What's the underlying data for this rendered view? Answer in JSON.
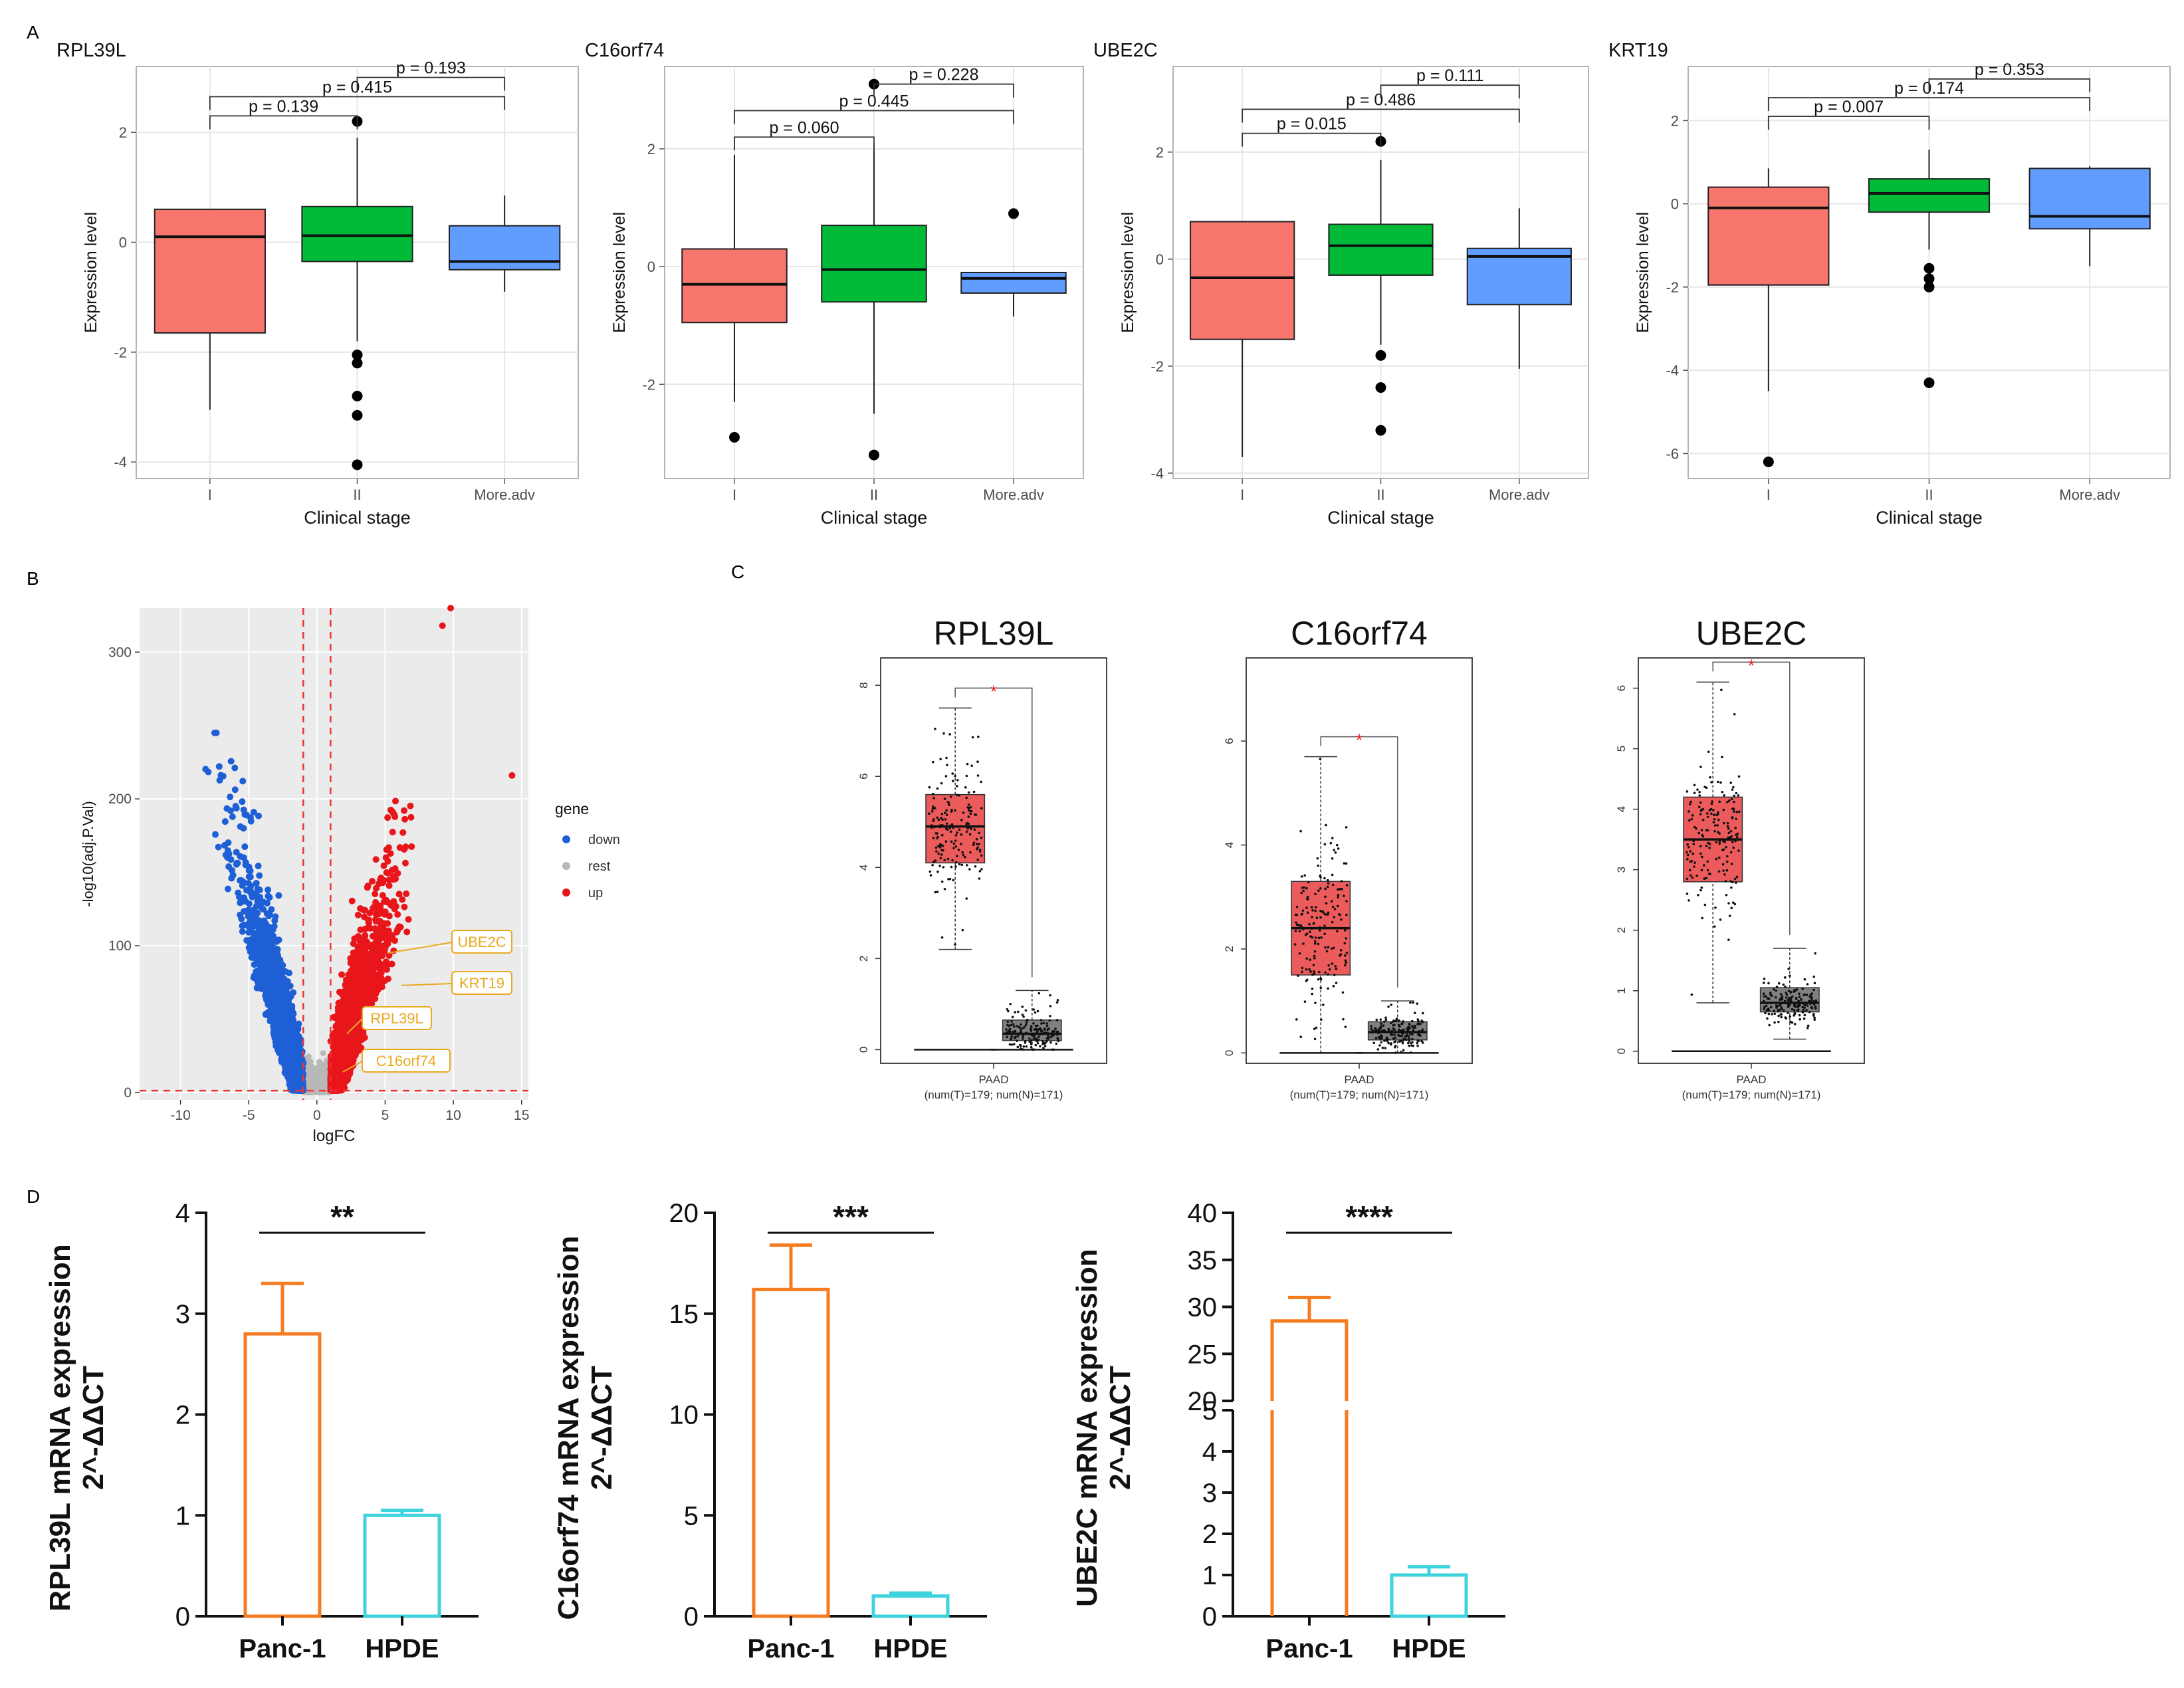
{
  "panel_labels": {
    "a": "A",
    "b": "B",
    "c": "C",
    "d": "D"
  },
  "colors": {
    "stage1": "#f8766d",
    "stage2": "#00ba38",
    "stage3": "#619cff",
    "down": "#1f5fd6",
    "rest": "#b8b8b8",
    "up": "#e8161b",
    "tumor": "#ec5b5b",
    "normal": "#808080",
    "panc": "#f47b20",
    "hpde": "#3fd3dd",
    "label_gold": "#e9a920"
  },
  "chart_data": [
    {
      "id": "A1",
      "type": "box",
      "title": "RPL39L",
      "xlabel": "Clinical stage",
      "ylabel": "Expression level",
      "categories": [
        "I",
        "II",
        "More.adv"
      ],
      "ylim": [
        -4.3,
        3.2
      ],
      "yticks": [
        -4,
        -2,
        0,
        2
      ],
      "boxes": [
        {
          "low": -3.05,
          "q1": -1.65,
          "median": 0.1,
          "q3": 0.6,
          "high": 0.6,
          "outliers": []
        },
        {
          "low": -1.8,
          "q1": -0.35,
          "median": 0.12,
          "q3": 0.65,
          "high": 1.9,
          "outliers": [
            2.2,
            -2.05,
            -2.2,
            -2.8,
            -3.15,
            -4.05
          ]
        },
        {
          "low": -0.9,
          "q1": -0.5,
          "median": -0.35,
          "q3": 0.3,
          "high": 0.85,
          "outliers": []
        }
      ],
      "brackets": [
        {
          "from": 0,
          "to": 1,
          "y": 2.3,
          "label": "p = 0.139"
        },
        {
          "from": 0,
          "to": 2,
          "y": 2.65,
          "label": "p = 0.415"
        },
        {
          "from": 1,
          "to": 2,
          "y": 3.0,
          "label": "p = 0.193"
        }
      ]
    },
    {
      "id": "A2",
      "type": "box",
      "title": "C16orf74",
      "xlabel": "Clinical stage",
      "ylabel": "Expression level",
      "categories": [
        "I",
        "II",
        "More.adv"
      ],
      "ylim": [
        -3.6,
        3.4
      ],
      "yticks": [
        -2,
        0,
        2
      ],
      "boxes": [
        {
          "low": -2.3,
          "q1": -0.95,
          "median": -0.3,
          "q3": 0.3,
          "high": 1.9,
          "outliers": [
            -2.9
          ]
        },
        {
          "low": -2.5,
          "q1": -0.6,
          "median": -0.05,
          "q3": 0.7,
          "high": 2.1,
          "outliers": [
            3.1,
            -3.2
          ]
        },
        {
          "low": -0.85,
          "q1": -0.45,
          "median": -0.2,
          "q3": -0.1,
          "high": -0.1,
          "outliers": [
            0.9
          ]
        }
      ],
      "brackets": [
        {
          "from": 0,
          "to": 1,
          "y": 2.2,
          "label": "p = 0.060"
        },
        {
          "from": 0,
          "to": 2,
          "y": 2.65,
          "label": "p = 0.445"
        },
        {
          "from": 1,
          "to": 2,
          "y": 3.1,
          "label": "p = 0.228"
        }
      ]
    },
    {
      "id": "A3",
      "type": "box",
      "title": "UBE2C",
      "xlabel": "Clinical stage",
      "ylabel": "Expression level",
      "categories": [
        "I",
        "II",
        "More.adv"
      ],
      "ylim": [
        -4.1,
        3.6
      ],
      "yticks": [
        -4,
        -2,
        0,
        2
      ],
      "boxes": [
        {
          "low": -3.7,
          "q1": -1.5,
          "median": -0.35,
          "q3": 0.7,
          "high": 0.7,
          "outliers": []
        },
        {
          "low": -1.6,
          "q1": -0.3,
          "median": 0.25,
          "q3": 0.65,
          "high": 1.85,
          "outliers": [
            2.2,
            -1.8,
            -2.4,
            -3.2
          ]
        },
        {
          "low": -2.05,
          "q1": -0.85,
          "median": 0.05,
          "q3": 0.2,
          "high": 0.95,
          "outliers": []
        }
      ],
      "brackets": [
        {
          "from": 0,
          "to": 1,
          "y": 2.35,
          "label": "p = 0.015"
        },
        {
          "from": 0,
          "to": 2,
          "y": 2.8,
          "label": "p = 0.486"
        },
        {
          "from": 1,
          "to": 2,
          "y": 3.25,
          "label": "p = 0.111"
        }
      ]
    },
    {
      "id": "A4",
      "type": "box",
      "title": "KRT19",
      "xlabel": "Clinical stage",
      "ylabel": "Expression level",
      "categories": [
        "I",
        "II",
        "More.adv"
      ],
      "ylim": [
        -6.6,
        3.3
      ],
      "yticks": [
        -6,
        -4,
        -2,
        0,
        2
      ],
      "boxes": [
        {
          "low": -4.5,
          "q1": -1.95,
          "median": -0.1,
          "q3": 0.4,
          "high": 0.85,
          "outliers": [
            -6.2
          ]
        },
        {
          "low": -1.1,
          "q1": -0.2,
          "median": 0.25,
          "q3": 0.6,
          "high": 1.3,
          "outliers": [
            -1.55,
            -1.8,
            -2.0,
            -4.3
          ]
        },
        {
          "low": -1.5,
          "q1": -0.6,
          "median": -0.3,
          "q3": 0.85,
          "high": 0.9,
          "outliers": []
        }
      ],
      "brackets": [
        {
          "from": 0,
          "to": 1,
          "y": 2.1,
          "label": "p = 0.007"
        },
        {
          "from": 0,
          "to": 2,
          "y": 2.55,
          "label": "p = 0.174"
        },
        {
          "from": 1,
          "to": 2,
          "y": 3.0,
          "label": "p = 0.353"
        }
      ]
    },
    {
      "id": "B",
      "type": "scatter",
      "xlabel": "logFC",
      "ylabel": "-log10(adj.P.Val)",
      "xlim": [
        -13,
        15.5
      ],
      "ylim": [
        -5,
        330
      ],
      "xticks": [
        -10,
        -5,
        0,
        5,
        10,
        15
      ],
      "yticks": [
        0,
        100,
        200,
        300
      ],
      "thresholds": {
        "x": [
          -1,
          1
        ],
        "y": 1.3
      },
      "legend": {
        "title": "gene",
        "items": [
          "down",
          "rest",
          "up"
        ]
      },
      "labeled_genes": [
        {
          "name": "UBE2C",
          "x": 5.2,
          "y": 95
        },
        {
          "name": "KRT19",
          "x": 6.2,
          "y": 73
        },
        {
          "name": "RPL39L",
          "x": 2.2,
          "y": 40
        },
        {
          "name": "C16orf74",
          "x": 1.9,
          "y": 14
        }
      ],
      "point_counts": {
        "down": 2600,
        "rest": 450,
        "up": 2800
      }
    },
    {
      "id": "C1",
      "type": "box",
      "title": "RPL39L",
      "dataset": "PAAD",
      "footnote": "(num(T)=179; num(N)=171)",
      "ylim": [
        -0.3,
        8.6
      ],
      "yticks": [
        0,
        2,
        4,
        6,
        8
      ],
      "significance": "*",
      "boxes": [
        {
          "group": "T",
          "low": 2.2,
          "q1": 4.1,
          "median": 4.9,
          "q3": 5.6,
          "high": 7.5,
          "n": 179
        },
        {
          "group": "N",
          "low": 0.0,
          "q1": 0.2,
          "median": 0.35,
          "q3": 0.65,
          "high": 1.3,
          "n": 171
        }
      ]
    },
    {
      "id": "C2",
      "type": "box",
      "title": "C16orf74",
      "dataset": "PAAD",
      "footnote": "(num(T)=179; num(N)=171)",
      "ylim": [
        -0.2,
        7.6
      ],
      "yticks": [
        0,
        2,
        4,
        6
      ],
      "significance": "*",
      "boxes": [
        {
          "group": "T",
          "low": 0.0,
          "q1": 1.5,
          "median": 2.4,
          "q3": 3.3,
          "high": 5.7,
          "n": 179
        },
        {
          "group": "N",
          "low": 0.0,
          "q1": 0.25,
          "median": 0.4,
          "q3": 0.6,
          "high": 1.0,
          "n": 171
        }
      ]
    },
    {
      "id": "C3",
      "type": "box",
      "title": "UBE2C",
      "dataset": "PAAD",
      "footnote": "(num(T)=179; num(N)=171)",
      "ylim": [
        -0.2,
        6.5
      ],
      "yticks": [
        0,
        1,
        2,
        3,
        4,
        5,
        6
      ],
      "significance": "*",
      "boxes": [
        {
          "group": "T",
          "low": 0.8,
          "q1": 2.8,
          "median": 3.5,
          "q3": 4.2,
          "high": 6.1,
          "n": 179
        },
        {
          "group": "N",
          "low": 0.2,
          "q1": 0.65,
          "median": 0.8,
          "q3": 1.05,
          "high": 1.7,
          "n": 171
        }
      ]
    },
    {
      "id": "D1",
      "type": "bar",
      "ylabel_lines": [
        "RPL39L mRNA expression",
        "2^-ΔΔCT"
      ],
      "categories": [
        "Panc-1",
        "HPDE"
      ],
      "values": [
        2.8,
        1.0
      ],
      "errors": [
        0.5,
        0.05
      ],
      "ylim": [
        0,
        4
      ],
      "yticks": [
        0,
        1,
        2,
        3,
        4
      ],
      "significance": "**"
    },
    {
      "id": "D2",
      "type": "bar",
      "ylabel_lines": [
        "C16orf74 mRNA expression",
        "2^-ΔΔCT"
      ],
      "categories": [
        "Panc-1",
        "HPDE"
      ],
      "values": [
        16.2,
        1.0
      ],
      "errors": [
        2.2,
        0.15
      ],
      "ylim": [
        0,
        20
      ],
      "yticks": [
        0,
        5,
        10,
        15,
        20
      ],
      "significance": "***"
    },
    {
      "id": "D3",
      "type": "bar",
      "ylabel_lines": [
        "UBE2C mRNA expression",
        "2^-ΔΔCT"
      ],
      "categories": [
        "Panc-1",
        "HPDE"
      ],
      "values": [
        28.5,
        1.0
      ],
      "errors": [
        2.5,
        0.2
      ],
      "axis_break": {
        "lower": [
          0,
          5
        ],
        "upper": [
          20,
          40
        ]
      },
      "yticks_lower": [
        0,
        1,
        2,
        3,
        4,
        5
      ],
      "yticks_upper": [
        20,
        25,
        30,
        35,
        40
      ],
      "significance": "****"
    }
  ]
}
